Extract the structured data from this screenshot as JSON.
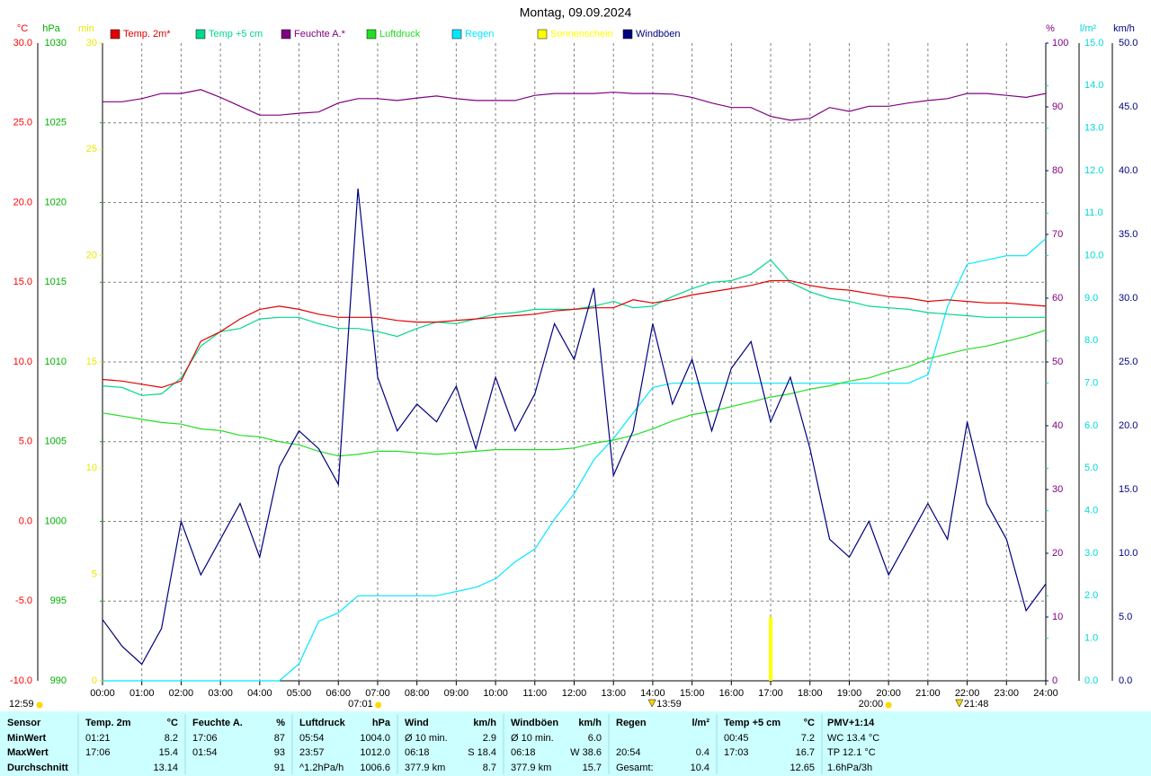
{
  "chart_data": {
    "type": "line",
    "title": "Montag, 09.09.2024",
    "grid": true,
    "x": [
      0,
      0.5,
      1,
      1.5,
      2,
      2.5,
      3,
      3.5,
      4,
      4.5,
      5,
      5.5,
      6,
      6.5,
      7,
      7.5,
      8,
      8.5,
      9,
      9.5,
      10,
      10.5,
      11,
      11.5,
      12,
      12.5,
      13,
      13.5,
      14,
      14.5,
      15,
      15.5,
      16,
      16.5,
      17,
      17.5,
      18,
      18.5,
      19,
      19.5,
      20,
      20.5,
      21,
      21.5,
      22,
      22.5,
      23,
      23.5,
      24
    ],
    "xlim": [
      0,
      24
    ],
    "xticks": [
      {
        "value": 0,
        "label": "00:00"
      },
      {
        "value": 1,
        "label": "01:00"
      },
      {
        "value": 2,
        "label": "02:00"
      },
      {
        "value": 3,
        "label": "03:00"
      },
      {
        "value": 4,
        "label": "04:00"
      },
      {
        "value": 5,
        "label": "05:00"
      },
      {
        "value": 6,
        "label": "06:00"
      },
      {
        "value": 7,
        "label": "07:00"
      },
      {
        "value": 8,
        "label": "08:00"
      },
      {
        "value": 9,
        "label": "09:00"
      },
      {
        "value": 10,
        "label": "10:00"
      },
      {
        "value": 11,
        "label": "11:00"
      },
      {
        "value": 12,
        "label": "12:00"
      },
      {
        "value": 13,
        "label": "13:00"
      },
      {
        "value": 14,
        "label": "14:00"
      },
      {
        "value": 15,
        "label": "15:00"
      },
      {
        "value": 16,
        "label": "16:00"
      },
      {
        "value": 17,
        "label": "17:00"
      },
      {
        "value": 18,
        "label": "18:00"
      },
      {
        "value": 19,
        "label": "19:00"
      },
      {
        "value": 20,
        "label": "20:00"
      },
      {
        "value": 21,
        "label": "21:00"
      },
      {
        "value": 22,
        "label": "22:00"
      },
      {
        "value": 23,
        "label": "23:00"
      },
      {
        "value": 24,
        "label": "24:00"
      }
    ],
    "axes": {
      "y": {
        "label": "°C",
        "color": "#ff0000",
        "side": "left",
        "lim": [
          -10,
          30
        ],
        "ticks": [
          {
            "value": -10,
            "label": "-10.0"
          },
          {
            "value": -5,
            "label": "-5.0"
          },
          {
            "value": 0,
            "label": "0.0"
          },
          {
            "value": 5,
            "label": "5.0"
          },
          {
            "value": 10,
            "label": "10.0"
          },
          {
            "value": 15,
            "label": "15.0"
          },
          {
            "value": 20,
            "label": "20.0"
          },
          {
            "value": 25,
            "label": "25.0"
          },
          {
            "value": 30,
            "label": "30.0"
          }
        ]
      },
      "y2": {
        "label": "hPa",
        "color": "#00b000",
        "side": "left",
        "lim": [
          990,
          1030
        ],
        "ticks": [
          990,
          995,
          1000,
          1005,
          1010,
          1015,
          1020,
          1025,
          1030
        ]
      },
      "y3": {
        "label": "min",
        "color": "#e8e800",
        "side": "left",
        "lim": [
          0,
          30
        ],
        "ticks": [
          0,
          5,
          10,
          15,
          20,
          25,
          30
        ]
      },
      "y4": {
        "label": "%",
        "color": "#800080",
        "side": "right",
        "lim": [
          0,
          100
        ],
        "ticks": [
          0,
          10,
          20,
          30,
          40,
          50,
          60,
          70,
          80,
          90,
          100
        ]
      },
      "y5": {
        "label": "l/m²",
        "color": "#00d8d8",
        "side": "right",
        "lim": [
          0,
          15
        ],
        "ticks": [
          {
            "value": 0,
            "label": "0.0"
          },
          {
            "value": 1,
            "label": "1.0"
          },
          {
            "value": 2,
            "label": "2.0"
          },
          {
            "value": 3,
            "label": "3.0"
          },
          {
            "value": 4,
            "label": "4.0"
          },
          {
            "value": 5,
            "label": "5.0"
          },
          {
            "value": 6,
            "label": "6.0"
          },
          {
            "value": 7,
            "label": "7.0"
          },
          {
            "value": 8,
            "label": "8.0"
          },
          {
            "value": 9,
            "label": "9.0"
          },
          {
            "value": 10,
            "label": "10.0"
          },
          {
            "value": 11,
            "label": "11.0"
          },
          {
            "value": 12,
            "label": "12.0"
          },
          {
            "value": 13,
            "label": "13.0"
          },
          {
            "value": 14,
            "label": "14.0"
          },
          {
            "value": 15,
            "label": "15.0"
          }
        ]
      },
      "y6": {
        "label": "km/h",
        "color": "#000080",
        "side": "right",
        "lim": [
          0,
          50
        ],
        "ticks": [
          {
            "value": 0,
            "label": "0.0"
          },
          {
            "value": 5,
            "label": "5.0"
          },
          {
            "value": 10,
            "label": "10.0"
          },
          {
            "value": 15,
            "label": "15.0"
          },
          {
            "value": 20,
            "label": "20.0"
          },
          {
            "value": 25,
            "label": "25.0"
          },
          {
            "value": 30,
            "label": "30.0"
          },
          {
            "value": 35,
            "label": "35.0"
          },
          {
            "value": 40,
            "label": "40.0"
          },
          {
            "value": 45,
            "label": "45.0"
          },
          {
            "value": 50,
            "label": "50.0"
          }
        ]
      }
    },
    "series": [
      {
        "name": "Temp. 2m*",
        "color": "#e00000",
        "axis": "y",
        "mark": "line",
        "values": [
          8.9,
          8.8,
          8.6,
          8.4,
          8.8,
          11.3,
          11.9,
          12.7,
          13.3,
          13.5,
          13.3,
          13.0,
          12.8,
          12.8,
          12.8,
          12.6,
          12.5,
          12.5,
          12.6,
          12.7,
          12.8,
          12.9,
          13.0,
          13.2,
          13.3,
          13.4,
          13.4,
          13.9,
          13.7,
          13.9,
          14.2,
          14.4,
          14.6,
          14.8,
          15.1,
          15.1,
          14.8,
          14.6,
          14.5,
          14.3,
          14.1,
          14.0,
          13.8,
          13.9,
          13.8,
          13.7,
          13.7,
          13.6,
          13.5
        ]
      },
      {
        "name": "Temp +5 cm",
        "color": "#00d88a",
        "axis": "y",
        "mark": "line",
        "values": [
          8.5,
          8.4,
          7.9,
          8.0,
          9.0,
          11.0,
          11.9,
          12.1,
          12.7,
          12.8,
          12.8,
          12.4,
          12.1,
          12.1,
          11.9,
          11.6,
          12.1,
          12.5,
          12.4,
          12.7,
          13.0,
          13.1,
          13.3,
          13.3,
          13.3,
          13.5,
          13.8,
          13.4,
          13.5,
          14.1,
          14.6,
          15.0,
          15.1,
          15.5,
          16.4,
          15.0,
          14.4,
          14.0,
          13.8,
          13.5,
          13.4,
          13.3,
          13.1,
          13.0,
          12.9,
          12.8,
          12.8,
          12.8,
          12.8
        ]
      },
      {
        "name": "Feuchte A.*",
        "color": "#800080",
        "axis": "y4",
        "mark": "line",
        "values": [
          90.8,
          90.8,
          91.3,
          92.1,
          92.1,
          92.7,
          91.5,
          90.1,
          88.7,
          88.7,
          89.0,
          89.2,
          90.6,
          91.3,
          91.3,
          91.0,
          91.4,
          91.7,
          91.3,
          91.0,
          91.0,
          91.0,
          91.8,
          92.1,
          92.1,
          92.1,
          92.3,
          92.1,
          92.1,
          92.0,
          91.5,
          90.6,
          89.9,
          89.9,
          88.5,
          87.9,
          88.2,
          89.9,
          89.3,
          90.1,
          90.1,
          90.6,
          91.0,
          91.3,
          92.1,
          92.1,
          91.8,
          91.5,
          92.1
        ]
      },
      {
        "name": "Luftdruck",
        "color": "#22dd22",
        "axis": "y2",
        "mark": "line",
        "values": [
          1006.8,
          1006.6,
          1006.4,
          1006.2,
          1006.1,
          1005.8,
          1005.7,
          1005.4,
          1005.3,
          1005.0,
          1004.8,
          1004.4,
          1004.1,
          1004.2,
          1004.4,
          1004.4,
          1004.3,
          1004.2,
          1004.3,
          1004.4,
          1004.5,
          1004.5,
          1004.5,
          1004.5,
          1004.6,
          1004.9,
          1005.1,
          1005.4,
          1005.8,
          1006.3,
          1006.7,
          1006.9,
          1007.2,
          1007.5,
          1007.8,
          1008.0,
          1008.3,
          1008.5,
          1008.8,
          1009.0,
          1009.4,
          1009.7,
          1010.2,
          1010.5,
          1010.8,
          1011.0,
          1011.3,
          1011.6,
          1012.0
        ]
      },
      {
        "name": "Regen",
        "color": "#00e8ff",
        "axis": "y5",
        "mark": "line",
        "values": [
          0,
          0,
          0,
          0,
          0,
          0,
          0,
          0,
          0,
          0,
          0.4,
          1.4,
          1.6,
          2.0,
          2.0,
          2.0,
          2.0,
          2.0,
          2.1,
          2.2,
          2.4,
          2.8,
          3.1,
          3.8,
          4.4,
          5.2,
          5.7,
          6.3,
          6.9,
          7.0,
          7.0,
          7.0,
          7.0,
          7.0,
          7.0,
          7.0,
          7.0,
          7.0,
          7.0,
          7.0,
          7.0,
          7.0,
          7.2,
          8.8,
          9.8,
          9.9,
          10.0,
          10.0,
          10.4
        ]
      },
      {
        "name": "Sonnenschein",
        "color": "#ffff00",
        "axis": "y3",
        "mark": "bar",
        "values": [
          0,
          0,
          0,
          0,
          0,
          0,
          0,
          0,
          0,
          0,
          0,
          0,
          0,
          0,
          0,
          0,
          0,
          0,
          0,
          0,
          0,
          0,
          0,
          0,
          0,
          0,
          0,
          0,
          0,
          0,
          0,
          0,
          0,
          0,
          3,
          0,
          0,
          0,
          0,
          0,
          0,
          0,
          0,
          0,
          0,
          0,
          0,
          0,
          0
        ]
      },
      {
        "name": "Windböen",
        "color": "#000080",
        "axis": "y6",
        "mark": "line",
        "values": [
          4.8,
          2.7,
          1.3,
          4.1,
          12.5,
          8.3,
          11.1,
          13.9,
          9.7,
          16.8,
          19.6,
          18.2,
          15.4,
          38.6,
          23.8,
          19.6,
          21.7,
          20.3,
          23.1,
          18.2,
          23.8,
          19.6,
          22.5,
          28.0,
          25.2,
          30.8,
          16.1,
          19.6,
          28.0,
          21.7,
          25.2,
          19.6,
          24.5,
          26.6,
          20.3,
          23.8,
          18.2,
          11.1,
          9.7,
          12.5,
          8.3,
          11.1,
          13.9,
          11.1,
          20.3,
          13.9,
          11.1,
          5.5,
          7.6
        ]
      }
    ],
    "annotations": [
      {
        "x": 7.0167,
        "label": "07:01",
        "marker": "sun"
      },
      {
        "x": 13.983,
        "label": "13:59",
        "marker": "triangle"
      },
      {
        "x": 20.0,
        "label": "20:00",
        "marker": "sun"
      },
      {
        "x": 21.8,
        "label": "21:48",
        "marker": "triangle"
      }
    ],
    "corner_note": "12:59"
  },
  "table": {
    "header": [
      "Sensor",
      "Temp. 2m",
      "°C",
      "Feuchte A.",
      "%",
      "Luftdruck",
      "hPa",
      "Wind",
      "km/h",
      "Windböen",
      "km/h",
      "Regen",
      "l/m²",
      "Temp +5 cm",
      "°C",
      "PMV+1:14"
    ],
    "rows": [
      {
        "label": "MinWert",
        "cells": [
          "01:21",
          "8.2",
          "17:06",
          "87",
          "05:54",
          "1004.0",
          "Ø 10 min.",
          "2.9",
          "Ø 10 min.",
          "6.0",
          null,
          null,
          "00:45",
          "7.2",
          "WC 13.4 °C"
        ]
      },
      {
        "label": "MaxWert",
        "cells": [
          "17:06",
          "15.4",
          "01:54",
          "93",
          "23:57",
          "1012.0",
          "06:18",
          "S 18.4",
          "06:18",
          "W 38.6",
          "20:54",
          "0.4",
          "17:03",
          "16.7",
          "TP 12.1 °C"
        ]
      },
      {
        "label": "Durchschnitt",
        "cells": [
          null,
          "13.14",
          null,
          "91",
          "^1.2hPa/h",
          "1006.6",
          "377.9 km",
          "8.7",
          "377.9 km",
          "15.7",
          "Gesamt:",
          "10.4",
          null,
          "12.65",
          "1.6hPa/3h"
        ]
      }
    ]
  }
}
